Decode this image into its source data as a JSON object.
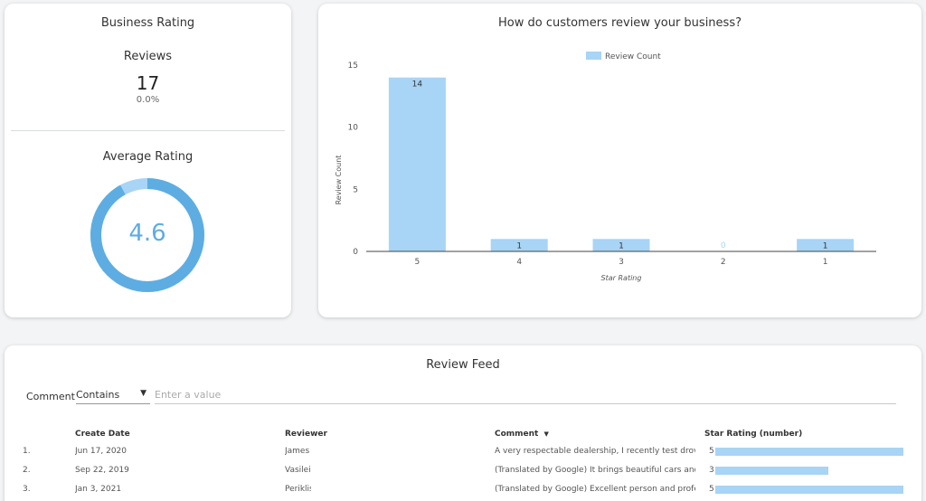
{
  "colors": {
    "accent": "#5dade2",
    "bar": "#a8d4f5",
    "donut_track": "#a8d4f5"
  },
  "business_rating": {
    "title": "Business Rating",
    "reviews_label": "Reviews",
    "reviews_value": "17",
    "reviews_change": "0.0%",
    "average_label": "Average Rating",
    "average_value": "4.6",
    "average_fraction": 0.92
  },
  "chart_data": {
    "type": "bar",
    "title": "How do customers review your business?",
    "xlabel": "Star Rating",
    "ylabel": "Review Count",
    "legend": "top-center",
    "ylim": [
      0,
      15
    ],
    "yticks": [
      "15",
      "10",
      "5",
      "0"
    ],
    "categories": [
      "5",
      "4",
      "3",
      "2",
      "1"
    ],
    "series": [
      {
        "name": "Review Count",
        "values": [
          14,
          1,
          1,
          0,
          1
        ],
        "labels": [
          "14",
          "1",
          "1",
          "0",
          "1"
        ]
      }
    ]
  },
  "review_feed": {
    "title": "Review Feed",
    "filter_label": "Comment",
    "filter_operator": "Contains",
    "filter_placeholder": "Enter a value",
    "columns": [
      "Create Date",
      "Reviewer",
      "Comment",
      "Star Rating (number)"
    ],
    "sort_icon": "sort-desc-icon",
    "rows": [
      {
        "index": "1.",
        "date": "Jun 17, 2020",
        "reviewer": "James",
        "comment": "A very respectable dealership, I recently test drove ...",
        "stars": "5",
        "stars_value": 5
      },
      {
        "index": "2.",
        "date": "Sep 22, 2019",
        "reviewer": "Vasileios",
        "comment": "(Translated by Google) It brings beautiful cars and ...",
        "stars": "3",
        "stars_value": 3
      },
      {
        "index": "3.",
        "date": "Jan 3, 2021",
        "reviewer": "Periklis",
        "comment": "(Translated by Google) Excellent person and profes...",
        "stars": "5",
        "stars_value": 5
      }
    ]
  }
}
